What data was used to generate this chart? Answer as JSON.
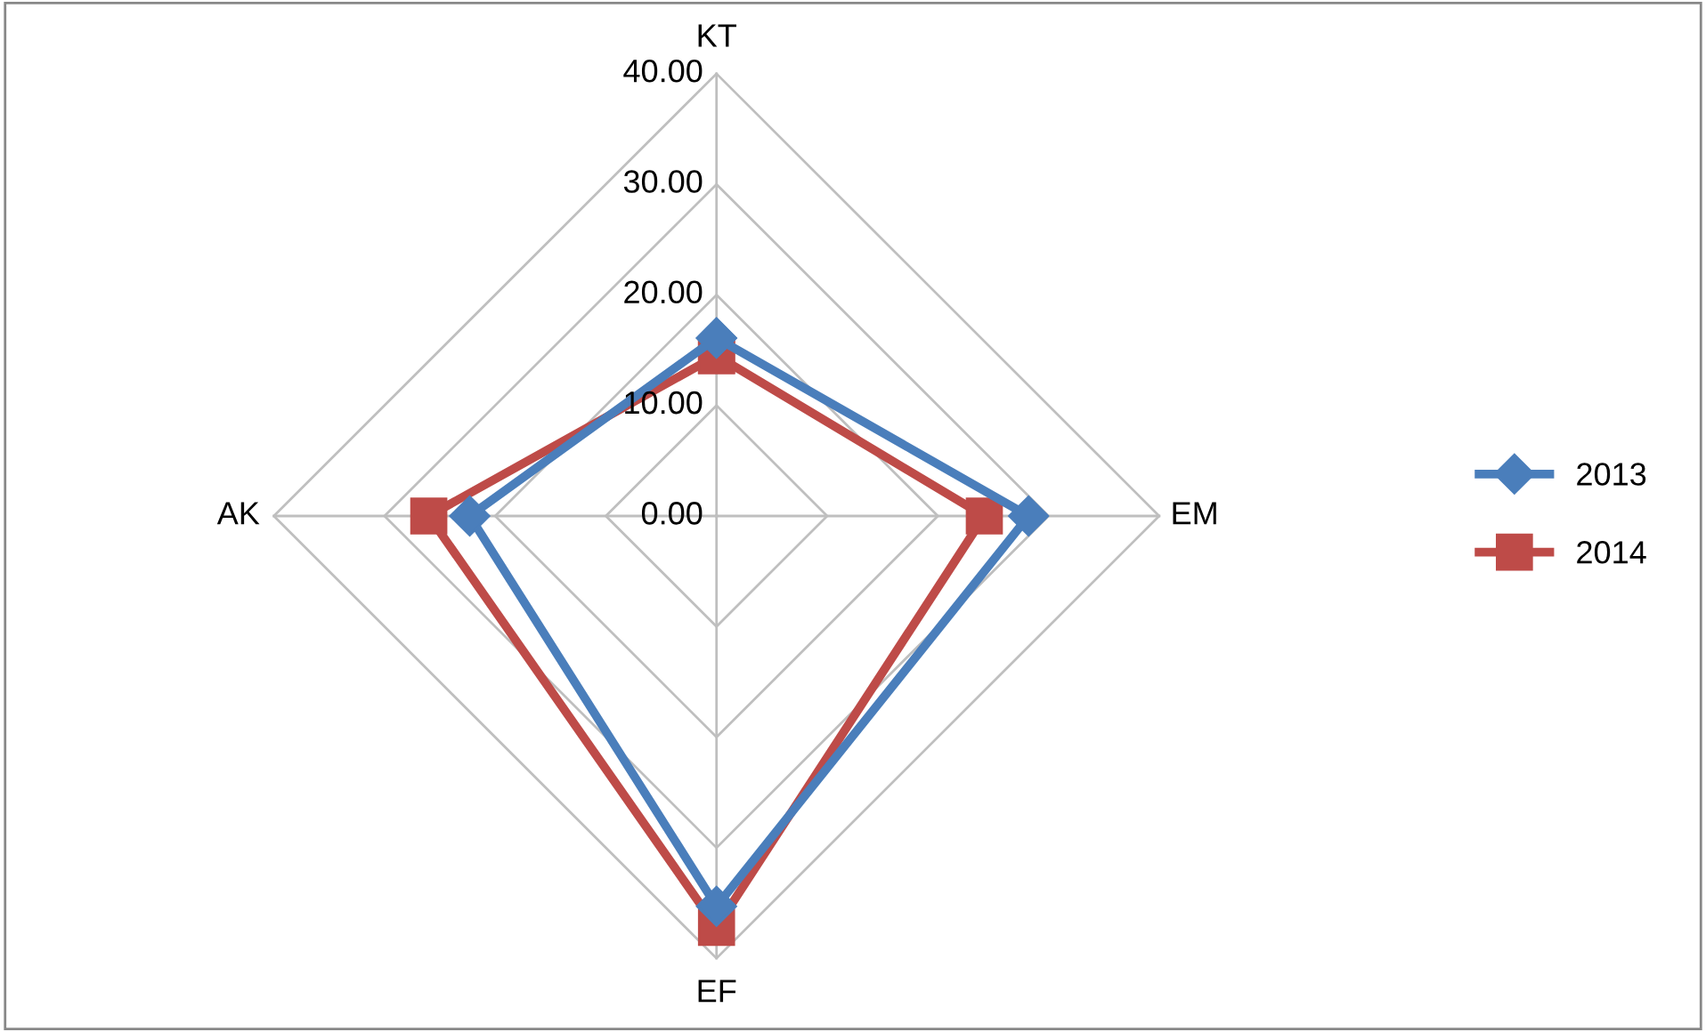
{
  "chart_data": {
    "type": "radar",
    "categories": [
      "KT",
      "EM",
      "EF",
      "AK"
    ],
    "series": [
      {
        "name": "2013",
        "color": "#4a7ebb",
        "marker": "diamond",
        "values": [
          16.1,
          28.2,
          35.3,
          22.3
        ]
      },
      {
        "name": "2014",
        "color": "#be4b48",
        "marker": "square",
        "values": [
          14.5,
          24.2,
          37.2,
          26.0
        ]
      }
    ],
    "ylim": [
      0,
      40
    ],
    "yticks": [
      {
        "value": 0,
        "label": "0.00"
      },
      {
        "value": 10,
        "label": "10.00"
      },
      {
        "value": 20,
        "label": "20.00"
      },
      {
        "value": 30,
        "label": "30.00"
      },
      {
        "value": 40,
        "label": "40.00"
      }
    ],
    "grid": true,
    "legend": "right"
  }
}
